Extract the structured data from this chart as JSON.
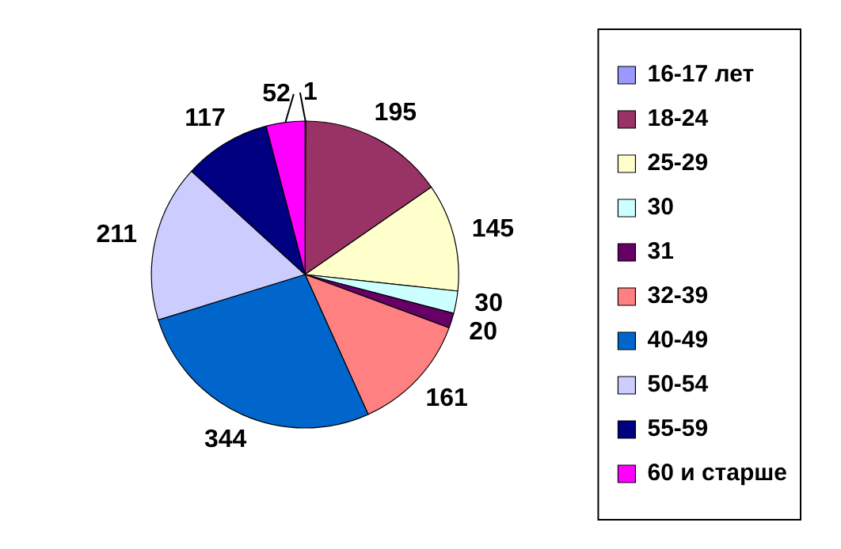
{
  "chart_data": {
    "type": "pie",
    "categories": [
      "16-17 лет",
      "18-24",
      "25-29",
      "30",
      "31",
      "32-39",
      "40-49",
      "50-54",
      "55-59",
      "60 и старше"
    ],
    "values": [
      1,
      195,
      145,
      30,
      20,
      161,
      344,
      211,
      117,
      52
    ],
    "colors": [
      "#9999ff",
      "#993366",
      "#ffffcc",
      "#ccffff",
      "#660066",
      "#ff8080",
      "#0066cc",
      "#ccccff",
      "#000080",
      "#ff00ff"
    ],
    "data_labels": true,
    "legend": "right"
  }
}
